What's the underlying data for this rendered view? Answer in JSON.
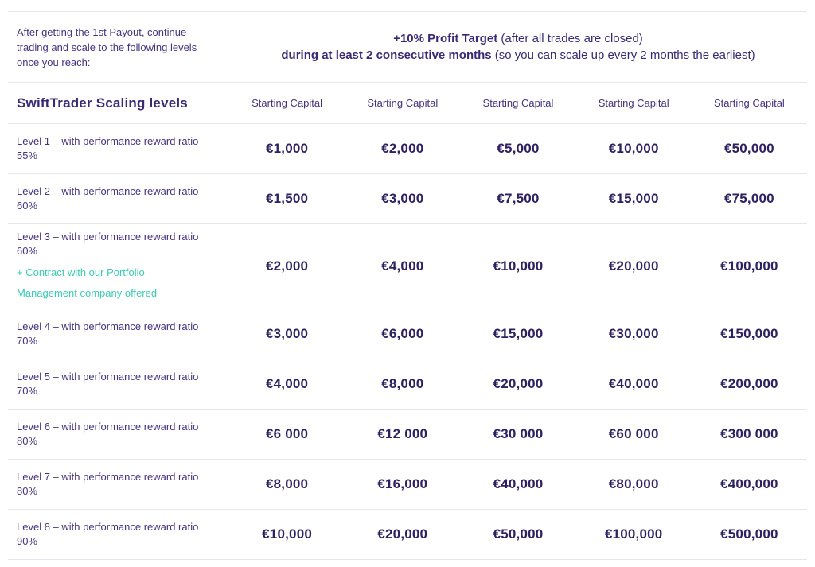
{
  "intro": {
    "left_text": "After getting the 1st Payout, continue trading and scale to the following levels once you reach:",
    "profit_line1_bold": "+10% Profit Target",
    "profit_line1_rest": " (after all trades are closed)",
    "profit_line2_bold": "during at least 2 consecutive months",
    "profit_line2_rest": " (so you can scale up every 2 months the earliest)"
  },
  "table": {
    "title": "SwiftTrader Scaling levels",
    "column_header": "Starting Capital",
    "column_count": 5,
    "rows": [
      {
        "label": "Level 1 – with performance reward ratio 55%",
        "values": [
          "€1,000",
          "€2,000",
          "€5,000",
          "€10,000",
          "€50,000"
        ]
      },
      {
        "label": "Level 2 – with performance reward ratio 60%",
        "values": [
          "€1,500",
          "€3,000",
          "€7,500",
          "€15,000",
          "€75,000"
        ]
      },
      {
        "label": "Level 3 – with performance reward ratio 60%",
        "note": "+ Contract with our Portfolio Management company offered",
        "values": [
          "€2,000",
          "€4,000",
          "€10,000",
          "€20,000",
          "€100,000"
        ]
      },
      {
        "label": "Level 4 – with performance reward ratio 70%",
        "values": [
          "€3,000",
          "€6,000",
          "€15,000",
          "€30,000",
          "€150,000"
        ]
      },
      {
        "label": "Level 5 – with performance reward ratio 70%",
        "values": [
          "€4,000",
          "€8,000",
          "€20,000",
          "€40,000",
          "€200,000"
        ]
      },
      {
        "label": "Level 6 – with performance reward ratio 80%",
        "values": [
          "€6 000",
          "€12 000",
          "€30 000",
          "€60 000",
          "€300 000"
        ]
      },
      {
        "label": "Level 7 – with performance reward ratio 80%",
        "values": [
          "€8,000",
          "€16,000",
          "€40,000",
          "€80,000",
          "€400,000"
        ]
      },
      {
        "label": "Level 8 – with performance reward ratio 90%",
        "values": [
          "€10,000",
          "€20,000",
          "€50,000",
          "€100,000",
          "€500,000"
        ]
      }
    ]
  },
  "colors": {
    "text_purple": "#46337f",
    "value_purple": "#2e2162",
    "accent_teal": "#3fc9b3",
    "divider": "#e7e4f0"
  }
}
